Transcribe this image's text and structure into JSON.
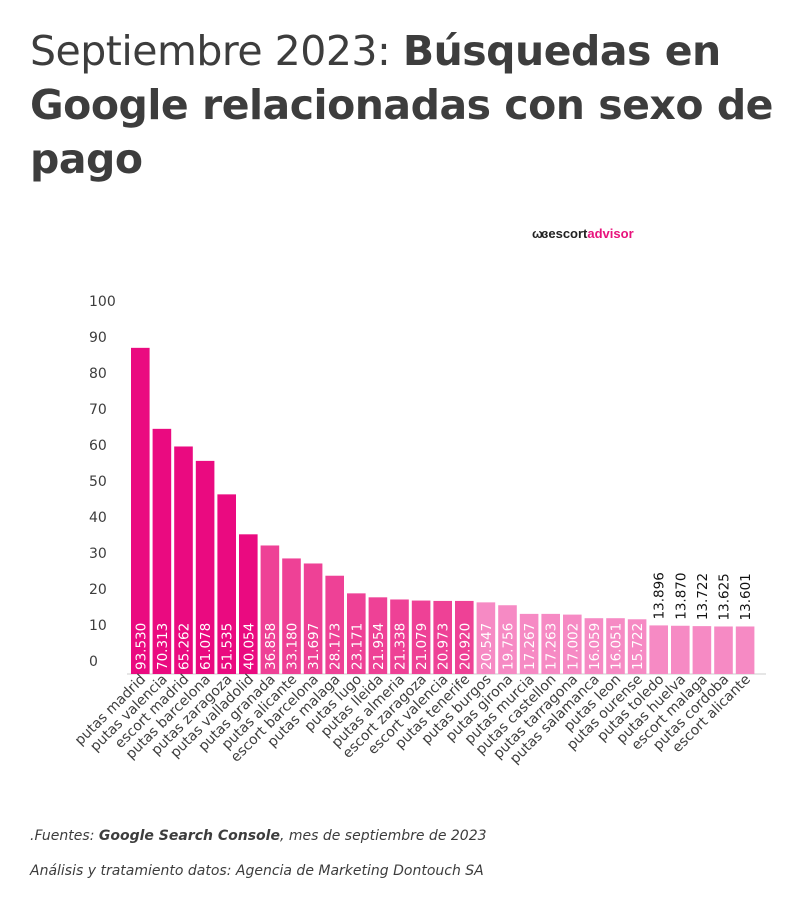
{
  "title": {
    "light": "Septiembre 2023: ",
    "bold": "Búsquedas en Google relacionadas con sexo de pago"
  },
  "logo": {
    "mark": "ωɞ",
    "word1": "escort",
    "word2": "advisor"
  },
  "footer": {
    "source_prefix": ".Fuentes: ",
    "source_bold": "Google Search Console",
    "source_suffix": ", mes de septiembre de 2023",
    "analysis": "Análisis y tratamiento datos: Agencia de Marketing Dontouch SA"
  },
  "colors": {
    "dark": "#ea0a80",
    "mid": "#ee4196",
    "light": "#f68ac4",
    "axis": "#d6d6d6",
    "text": "#3d3d3d"
  },
  "chart_data": {
    "type": "bar",
    "title": "",
    "xlabel": "",
    "ylabel": "",
    "ylim": [
      0,
      100
    ],
    "yticks": [
      0,
      10,
      20,
      30,
      40,
      50,
      60,
      70,
      80,
      90,
      100
    ],
    "categories": [
      "putas madrid",
      "putas valencia",
      "escort madrid",
      "putas barcelona",
      "putas zaragoza",
      "putas valladolid",
      "putas granada",
      "putas alicante",
      "escort barcelona",
      "putas malaga",
      "putas lugo",
      "putas lleida",
      "putas almeria",
      "escort zaragoza",
      "escort valencia",
      "putas tenerife",
      "putas burgos",
      "putas girona",
      "putas murcia",
      "putas castellon",
      "putas tarragona",
      "putas salamanca",
      "putas leon",
      "putas ourense",
      "putas toledo",
      "putas huelva",
      "escort malaga",
      "putas cordoba",
      "escort alicante"
    ],
    "values": [
      90.6,
      68.1,
      63.2,
      59.2,
      49.9,
      38.8,
      35.7,
      32.1,
      30.7,
      27.3,
      22.4,
      21.3,
      20.7,
      20.4,
      20.3,
      20.3,
      19.9,
      19.1,
      16.7,
      16.7,
      16.5,
      15.5,
      15.5,
      15.2,
      13.5,
      13.4,
      13.3,
      13.2,
      13.2
    ],
    "labels": [
      "93.530",
      "70.313",
      "65.262",
      "61.078",
      "51.535",
      "40.054",
      "36.858",
      "33.180",
      "31.697",
      "28.173",
      "23.171",
      "21.954",
      "21.338",
      "21.079",
      "20.973",
      "20.920",
      "20.547",
      "19.756",
      "17.267",
      "17.263",
      "17.002",
      "16.059",
      "16.051",
      "15.722",
      "13.896",
      "13.870",
      "13.722",
      "13.625",
      "13.601"
    ],
    "tiers": [
      "dark",
      "dark",
      "dark",
      "dark",
      "dark",
      "dark",
      "mid",
      "mid",
      "mid",
      "mid",
      "mid",
      "mid",
      "mid",
      "mid",
      "mid",
      "mid",
      "light",
      "light",
      "light",
      "light",
      "light",
      "light",
      "light",
      "light",
      "light",
      "light",
      "light",
      "light",
      "light"
    ],
    "label_outside": [
      false,
      false,
      false,
      false,
      false,
      false,
      false,
      false,
      false,
      false,
      false,
      false,
      false,
      false,
      false,
      false,
      false,
      false,
      false,
      false,
      false,
      false,
      false,
      false,
      true,
      true,
      true,
      true,
      true
    ]
  }
}
